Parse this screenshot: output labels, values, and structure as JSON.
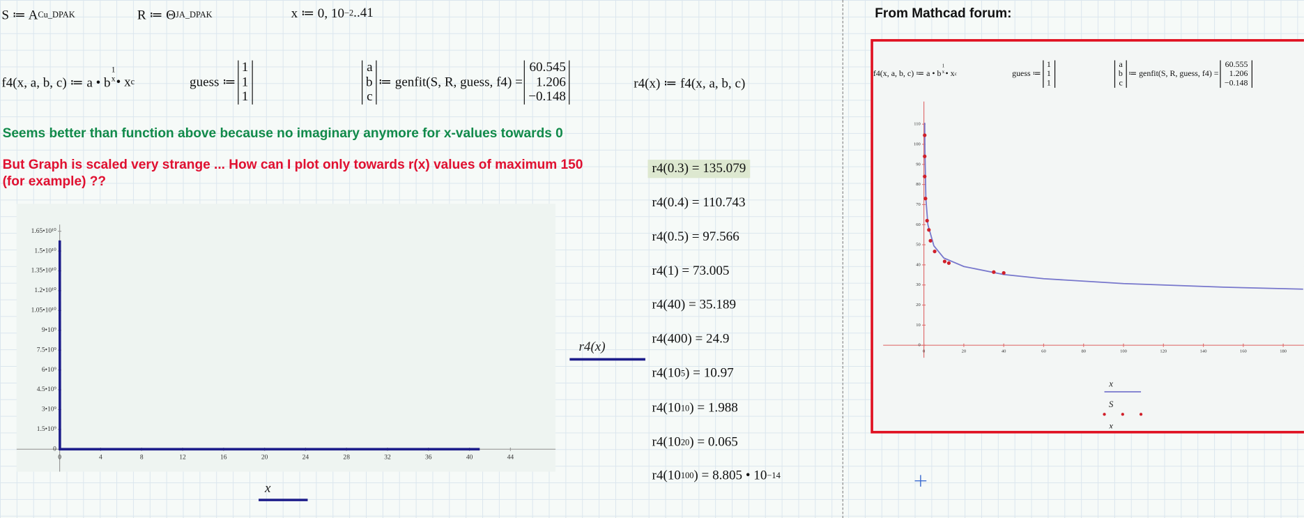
{
  "worksheet": {
    "formulas": [
      [
        {
          "t": "S ≔ A"
        },
        {
          "sub": "Cu_DPAK"
        }
      ],
      [
        {
          "t": "R ≔ Θ"
        },
        {
          "sub": "JA_DPAK"
        }
      ],
      [
        {
          "t": "x ≔ 0, 10"
        },
        {
          "sup": "−2"
        },
        {
          "t": "..41"
        }
      ],
      [
        {
          "t": "f4(x, a, b, c) ≔ a • b"
        },
        {
          "num": "1",
          "den": "x"
        },
        {
          "t": " • x"
        },
        {
          "sup": "c"
        }
      ],
      [
        {
          "t": "guess ≔ "
        },
        {
          "matrix": [
            "1",
            "1",
            "1"
          ]
        }
      ],
      [
        {
          "matrix": [
            "a",
            "b",
            "c"
          ]
        },
        {
          "t": " ≔ genfit(S, R, guess, f4) = "
        },
        {
          "matrix": [
            "60.545",
            "1.206",
            "−0.148"
          ]
        }
      ],
      [
        {
          "t": "r4(x) ≔ f4(x, a, b, c)"
        }
      ]
    ],
    "green_note": "Seems better than function above because no imaginary anymore for x-values towards 0",
    "red_note": [
      "But Graph is scaled very strange ... How can I plot only towards r(x) values of maximum 150",
      "(for example) ??"
    ],
    "evaluations": [
      [
        {
          "t": "r4(0.3) = 135.079"
        }
      ],
      [
        {
          "t": "r4(0.4) = 110.743"
        }
      ],
      [
        {
          "t": "r4(0.5) = 97.566"
        }
      ],
      [
        {
          "t": "r4(1) = 73.005"
        }
      ],
      [
        {
          "t": "r4(40) = 35.189"
        }
      ],
      [
        {
          "t": "r4(400) = 24.9"
        }
      ],
      [
        {
          "t": "r4(10"
        },
        {
          "sup": "5"
        },
        {
          "t": ") = 10.97"
        }
      ],
      [
        {
          "t": "r4(10"
        },
        {
          "sup": "10"
        },
        {
          "t": ") = 1.988"
        }
      ],
      [
        {
          "t": "r4(10"
        },
        {
          "sup": "20"
        },
        {
          "t": ") = 0.065"
        }
      ],
      [
        {
          "t": "r4(10"
        },
        {
          "sup": "100"
        },
        {
          "t": ") = 8.805 • 10"
        },
        {
          "sup": "−14"
        }
      ]
    ]
  },
  "forum": {
    "title": "From Mathcad forum:",
    "formulas": [
      [
        {
          "t": "f4(x, a, b, c) ≔ a • b"
        },
        {
          "num": "1",
          "den": "x"
        },
        {
          "t": " • x"
        },
        {
          "sup": "c"
        }
      ],
      [
        {
          "t": "guess ≔ "
        },
        {
          "matrix": [
            "1",
            "1",
            "1"
          ]
        }
      ],
      [
        {
          "matrix": [
            "a",
            "b",
            "c"
          ]
        },
        {
          "t": " ≔ genfit(S, R, guess, f4) = "
        },
        {
          "matrix": [
            "60.555",
            "1.206",
            "−0.148"
          ]
        }
      ]
    ]
  },
  "chart_data": [
    {
      "type": "line",
      "x_label": "x",
      "xlim": [
        -4.2,
        48.4
      ],
      "ylim": [
        -1700000000,
        17000000000
      ],
      "xticks": [
        0,
        4,
        8,
        12,
        16,
        20,
        24,
        28,
        32,
        36,
        40,
        44
      ],
      "yticks": [
        0,
        {
          "value": 1500000000,
          "label": "1.5•10⁹"
        },
        {
          "value": 3000000000,
          "label": "3•10⁹"
        },
        {
          "value": 4500000000,
          "label": "4.5•10⁹"
        },
        {
          "value": 6000000000,
          "label": "6•10⁹"
        },
        {
          "value": 7500000000,
          "label": "7.5•10⁹"
        },
        {
          "value": 9000000000,
          "label": "9•10⁹"
        },
        {
          "value": 10500000000,
          "label": "1.05•10¹⁰"
        },
        {
          "value": 12000000000,
          "label": "1.2•10¹⁰"
        },
        {
          "value": 13500000000,
          "label": "1.35•10¹⁰"
        },
        {
          "value": 15000000000,
          "label": "1.5•10¹⁰"
        },
        {
          "value": 16500000000,
          "label": "1.65•10¹⁰"
        }
      ],
      "axis_color": "#999999",
      "series": [
        {
          "name": "r4(x)",
          "color": "#1c1c8a",
          "mode": "line",
          "x": [
            0.01,
            0.02,
            0.1,
            1,
            41
          ],
          "values": [
            15800000000,
            1260000,
            555,
            73.005,
            35.0
          ]
        }
      ]
    },
    {
      "type": "line",
      "x_label": "x",
      "xlim": [
        -20.4,
        190.4
      ],
      "ylim": [
        -6.2,
        121.3
      ],
      "xticks": [
        0,
        20,
        40,
        60,
        80,
        100,
        120,
        140,
        160,
        180
      ],
      "yticks": [
        0,
        10,
        20,
        30,
        40,
        50,
        60,
        70,
        80,
        90,
        100,
        110
      ],
      "axis_color": "#e07070",
      "series": [
        {
          "name": "x",
          "color": "#7777cc",
          "mode": "line",
          "x": [
            0.4,
            0.5,
            1,
            2,
            5,
            10,
            20,
            40,
            60,
            100,
            150,
            190
          ],
          "values": [
            110.7,
            97.6,
            73.0,
            60.0,
            49.5,
            43.4,
            39.2,
            35.2,
            33.1,
            30.7,
            28.9,
            27.9
          ]
        },
        {
          "name": "S",
          "color": "#d0202a",
          "mode": "markers",
          "x": [
            0.4,
            0.4,
            0.4,
            0.8,
            1.6,
            2.5,
            3.3,
            5.4,
            10.4,
            12.5,
            35,
            40
          ],
          "values": [
            104.5,
            94,
            84,
            73,
            62,
            57.4,
            52,
            46.7,
            41.7,
            40.9,
            36.4,
            36
          ]
        }
      ]
    }
  ]
}
